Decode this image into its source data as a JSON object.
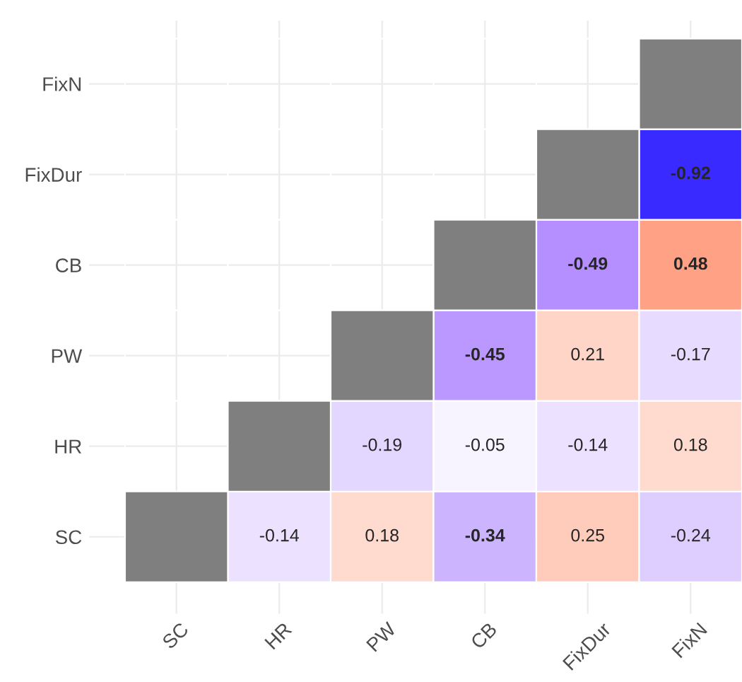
{
  "chart_data": {
    "type": "heatmap",
    "categories": [
      "SC",
      "HR",
      "PW",
      "CB",
      "FixDur",
      "FixN"
    ],
    "y_categories": [
      "FixN",
      "FixDur",
      "CB",
      "PW",
      "HR",
      "SC"
    ],
    "cells": [
      [
        null,
        null,
        null,
        null,
        null,
        null
      ],
      [
        null,
        null,
        null,
        null,
        null,
        -0.92
      ],
      [
        null,
        null,
        null,
        null,
        -0.49,
        0.48
      ],
      [
        null,
        null,
        null,
        -0.45,
        0.21,
        -0.17
      ],
      [
        null,
        null,
        -0.19,
        -0.05,
        -0.14,
        0.18
      ],
      [
        null,
        -0.14,
        0.18,
        -0.34,
        0.25,
        -0.24
      ]
    ],
    "color": "#7f7f7f",
    "grid": true,
    "data_labels": true
  }
}
